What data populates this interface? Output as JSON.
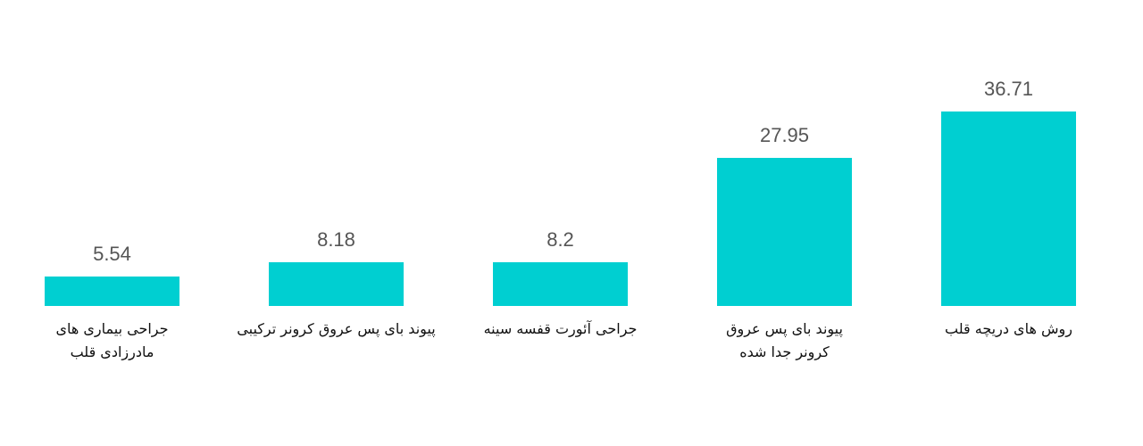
{
  "chart_data": {
    "type": "bar",
    "categories": [
      "جراحی بیماری های مادرزادی قلب",
      "پیوند بای پس عروق کرونر ترکیبی",
      "جراحی آئورت قفسه سینه",
      "پیوند بای پس عروق کرونر جدا شده",
      "روش های دریچه قلب"
    ],
    "values": [
      5.54,
      8.18,
      8.2,
      27.95,
      36.71
    ],
    "color": "#00cfd1"
  }
}
